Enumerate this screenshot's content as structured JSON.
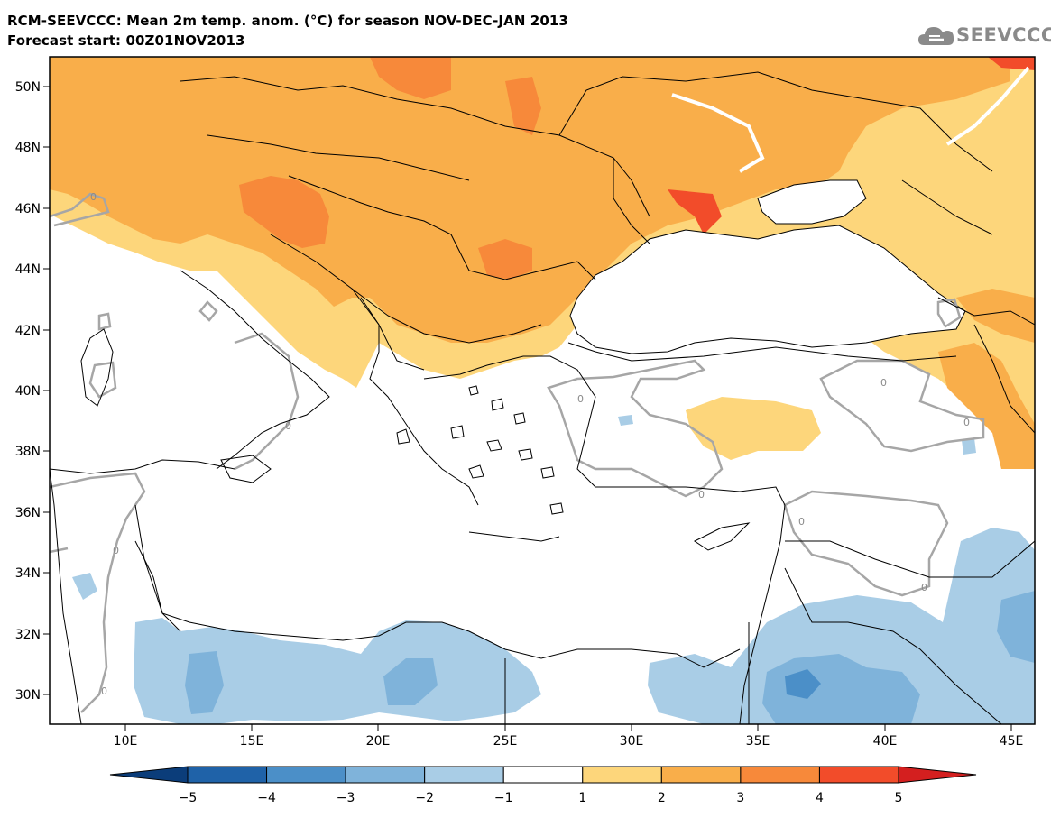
{
  "header": {
    "title_line1": "RCM-SEEVCCC: Mean 2m temp. anom. (°C) for season NOV-DEC-JAN 2013",
    "title_line2": "Forecast start: 00Z01NOV2013"
  },
  "logo": {
    "text": "SEEVCCC",
    "icon": "cloud-icon"
  },
  "map": {
    "lon_labels": [
      "10E",
      "15E",
      "20E",
      "25E",
      "30E",
      "35E",
      "40E",
      "45E"
    ],
    "lat_labels": [
      "50N",
      "48N",
      "46N",
      "44N",
      "42N",
      "40N",
      "38N",
      "36N",
      "34N",
      "32N",
      "30N"
    ],
    "contour_label": "0"
  },
  "colorbar": {
    "ticks": [
      "−5",
      "−4",
      "−3",
      "−2",
      "−1",
      "1",
      "2",
      "3",
      "4",
      "5"
    ],
    "colors": [
      "#0b3d7a",
      "#1f62a8",
      "#4b8fc8",
      "#7fb3da",
      "#a9cde6",
      "#ffffff",
      "#fdd67b",
      "#f9ae4a",
      "#f7893a",
      "#f24c2a",
      "#d41f1f"
    ]
  }
}
